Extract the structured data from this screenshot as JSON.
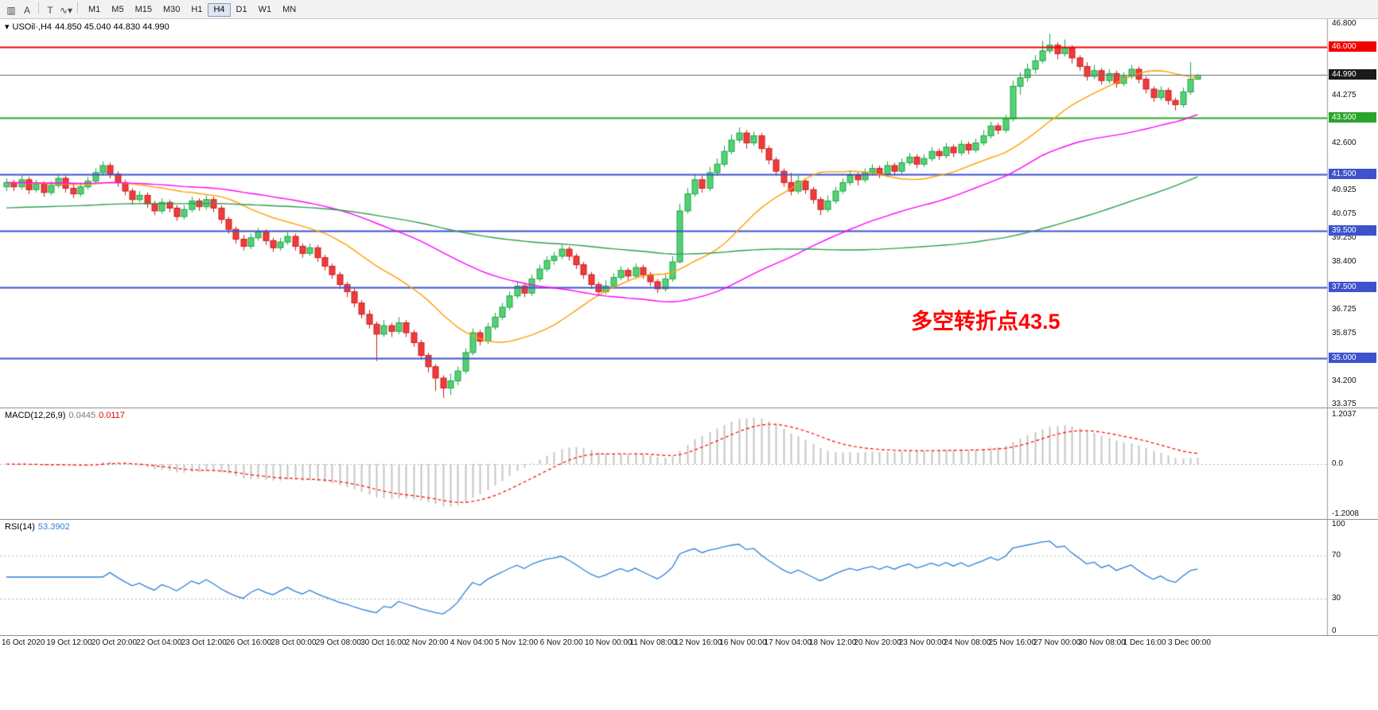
{
  "toolbar": {
    "icons": [
      {
        "name": "charts-grid-icon",
        "glyph": "▥"
      },
      {
        "name": "cursor-tool-icon",
        "glyph": "A"
      },
      {
        "name": "separator",
        "glyph": ""
      },
      {
        "name": "text-tool-icon",
        "glyph": "T"
      },
      {
        "name": "line-tools-icon",
        "glyph": "∿▾"
      },
      {
        "name": "separator",
        "glyph": ""
      }
    ],
    "timeframes": [
      "M1",
      "M5",
      "M15",
      "M30",
      "H1",
      "H4",
      "D1",
      "W1",
      "MN"
    ],
    "active_timeframe": "H4"
  },
  "price_panel": {
    "collapse_arrow": "▾",
    "symbol_title": "USOil·,H4",
    "ohlc": "44.850 45.040 44.830 44.990",
    "annotation": {
      "text": "多空转折点43.5",
      "color": "#FF0000"
    },
    "axis_ticks": [
      {
        "v": 46.8,
        "label": "46.800"
      },
      {
        "v": 44.275,
        "label": "44.275"
      },
      {
        "v": 42.6,
        "label": "42.600"
      },
      {
        "v": 40.925,
        "label": "40.925"
      },
      {
        "v": 40.075,
        "label": "40.075"
      },
      {
        "v": 39.25,
        "label": "39.250"
      },
      {
        "v": 38.4,
        "label": "38.400"
      },
      {
        "v": 36.725,
        "label": "36.725"
      },
      {
        "v": 35.875,
        "label": "35.875"
      },
      {
        "v": 34.2,
        "label": "34.200"
      },
      {
        "v": 33.375,
        "label": "33.375"
      }
    ],
    "hlines": [
      {
        "value": 46.0,
        "label": "46.000",
        "color": "#f20000",
        "width": 2
      },
      {
        "value": 43.5,
        "label": "43.500",
        "color": "#2aa52a",
        "width": 2
      },
      {
        "value": 41.5,
        "label": "41.500",
        "color": "#3d52cc",
        "width": 2
      },
      {
        "value": 39.5,
        "label": "39.500",
        "color": "#3d52cc",
        "width": 2
      },
      {
        "value": 37.5,
        "label": "37.500",
        "color": "#3d52cc",
        "width": 2
      },
      {
        "value": 35.0,
        "label": "35.000",
        "color": "#3d52cc",
        "width": 2
      }
    ],
    "current_price": {
      "value": 44.99,
      "label": "44.990",
      "badge_color": "#1a1a1a",
      "line_color": "#6a6a6a"
    }
  },
  "macd_panel": {
    "title": "MACD(12,26,9)",
    "main_value": "0.0445",
    "signal_value": "0.0117",
    "axis_labels": [
      "1.2037",
      "0.0",
      "-1.2008"
    ]
  },
  "rsi_panel": {
    "title": "RSI(14)",
    "value": "53.3902",
    "levels": [
      70,
      30
    ],
    "axis_labels": [
      {
        "v": 100,
        "label": "100"
      },
      {
        "v": 70,
        "label": "70"
      },
      {
        "v": 30,
        "label": "30"
      },
      {
        "v": 0,
        "label": "0"
      }
    ]
  },
  "time_axis": {
    "labels": [
      "16 Oct 2020",
      "19 Oct 12:00",
      "20 Oct 20:00",
      "22 Oct 04:00",
      "23 Oct 12:00",
      "26 Oct 16:00",
      "28 Oct 00:00",
      "29 Oct 08:00",
      "30 Oct 16:00",
      "2 Nov 20:00",
      "4 Nov 04:00",
      "5 Nov 12:00",
      "6 Nov 20:00",
      "10 Nov 00:00",
      "11 Nov 08:00",
      "12 Nov 16:00",
      "16 Nov 00:00",
      "17 Nov 04:00",
      "18 Nov 12:00",
      "20 Nov 20:00",
      "23 Nov 00:00",
      "24 Nov 08:00",
      "25 Nov 16:00",
      "27 Nov 00:00",
      "30 Nov 08:00",
      "1 Dec 16:00",
      "3 Dec 00:00"
    ]
  },
  "chart_data": {
    "type": "candlestick",
    "symbol": "USOil",
    "timeframe": "H4",
    "title": "USOil·,H4 44.850 45.040 44.830 44.990",
    "y_domain": [
      33.26,
      46.97
    ],
    "x_range": [
      "16 Oct 2020",
      "3 Dec 2020 00:00"
    ],
    "grid": false,
    "candles": [
      [
        41.05,
        41.35,
        40.9,
        41.2
      ],
      [
        41.2,
        41.3,
        40.9,
        41.05
      ],
      [
        41.05,
        41.45,
        40.95,
        41.3
      ],
      [
        41.3,
        41.4,
        40.8,
        40.95
      ],
      [
        40.95,
        41.3,
        40.85,
        41.15
      ],
      [
        41.15,
        41.25,
        40.7,
        40.85
      ],
      [
        40.85,
        41.25,
        40.75,
        41.1
      ],
      [
        41.1,
        41.5,
        41.0,
        41.35
      ],
      [
        41.35,
        41.45,
        40.85,
        41.0
      ],
      [
        41.0,
        41.15,
        40.65,
        40.8
      ],
      [
        40.8,
        41.2,
        40.7,
        41.05
      ],
      [
        41.05,
        41.4,
        40.95,
        41.25
      ],
      [
        41.25,
        41.7,
        41.15,
        41.55
      ],
      [
        41.55,
        41.95,
        41.45,
        41.8
      ],
      [
        41.8,
        41.9,
        41.35,
        41.5
      ],
      [
        41.5,
        41.6,
        41.05,
        41.2
      ],
      [
        41.2,
        41.3,
        40.75,
        40.9
      ],
      [
        40.9,
        41.0,
        40.45,
        40.6
      ],
      [
        40.6,
        40.9,
        40.5,
        40.75
      ],
      [
        40.75,
        40.85,
        40.3,
        40.45
      ],
      [
        40.45,
        40.55,
        40.05,
        40.2
      ],
      [
        40.2,
        40.65,
        40.1,
        40.5
      ],
      [
        40.5,
        40.6,
        40.15,
        40.3
      ],
      [
        40.3,
        40.4,
        39.85,
        40.0
      ],
      [
        40.0,
        40.4,
        39.9,
        40.25
      ],
      [
        40.25,
        40.7,
        40.15,
        40.55
      ],
      [
        40.55,
        40.65,
        40.2,
        40.35
      ],
      [
        40.35,
        40.75,
        40.25,
        40.6
      ],
      [
        40.6,
        40.7,
        40.15,
        40.3
      ],
      [
        40.3,
        40.4,
        39.75,
        39.9
      ],
      [
        39.9,
        40.0,
        39.4,
        39.55
      ],
      [
        39.55,
        39.65,
        39.05,
        39.2
      ],
      [
        39.2,
        39.35,
        38.8,
        38.95
      ],
      [
        38.95,
        39.4,
        38.85,
        39.25
      ],
      [
        39.25,
        39.6,
        39.15,
        39.45
      ],
      [
        39.45,
        39.55,
        39.0,
        39.15
      ],
      [
        39.15,
        39.25,
        38.75,
        38.9
      ],
      [
        38.9,
        39.25,
        38.8,
        39.1
      ],
      [
        39.1,
        39.45,
        39.0,
        39.3
      ],
      [
        39.3,
        39.4,
        38.8,
        38.95
      ],
      [
        38.95,
        39.05,
        38.55,
        38.7
      ],
      [
        38.7,
        39.05,
        38.6,
        38.9
      ],
      [
        38.9,
        39.0,
        38.4,
        38.55
      ],
      [
        38.55,
        38.65,
        38.1,
        38.25
      ],
      [
        38.25,
        38.35,
        37.8,
        37.95
      ],
      [
        37.95,
        38.05,
        37.45,
        37.6
      ],
      [
        37.6,
        37.7,
        37.15,
        37.35
      ],
      [
        37.35,
        37.5,
        36.8,
        36.95
      ],
      [
        36.95,
        37.05,
        36.4,
        36.55
      ],
      [
        36.55,
        36.7,
        36.05,
        36.2
      ],
      [
        36.2,
        36.3,
        34.9,
        35.85
      ],
      [
        35.85,
        36.35,
        35.75,
        36.15
      ],
      [
        36.15,
        36.25,
        35.75,
        35.95
      ],
      [
        35.95,
        36.45,
        35.85,
        36.25
      ],
      [
        36.25,
        36.35,
        35.75,
        35.9
      ],
      [
        35.9,
        36.0,
        35.4,
        35.55
      ],
      [
        35.55,
        35.65,
        34.95,
        35.1
      ],
      [
        35.1,
        35.2,
        34.5,
        34.7
      ],
      [
        34.7,
        34.8,
        33.85,
        34.3
      ],
      [
        34.3,
        34.4,
        33.6,
        33.95
      ],
      [
        33.95,
        34.45,
        33.7,
        34.2
      ],
      [
        34.2,
        34.7,
        34.05,
        34.55
      ],
      [
        34.55,
        35.35,
        34.45,
        35.2
      ],
      [
        35.2,
        36.05,
        35.1,
        35.9
      ],
      [
        35.9,
        36.0,
        35.45,
        35.6
      ],
      [
        35.6,
        36.25,
        35.5,
        36.1
      ],
      [
        36.1,
        36.6,
        36.0,
        36.45
      ],
      [
        36.45,
        36.95,
        36.35,
        36.8
      ],
      [
        36.8,
        37.35,
        36.7,
        37.2
      ],
      [
        37.2,
        37.7,
        37.1,
        37.55
      ],
      [
        37.55,
        37.65,
        37.15,
        37.3
      ],
      [
        37.3,
        37.95,
        37.2,
        37.8
      ],
      [
        37.8,
        38.3,
        37.7,
        38.15
      ],
      [
        38.15,
        38.6,
        38.05,
        38.45
      ],
      [
        38.45,
        38.75,
        38.3,
        38.6
      ],
      [
        38.6,
        39.0,
        38.5,
        38.85
      ],
      [
        38.85,
        38.95,
        38.45,
        38.6
      ],
      [
        38.6,
        38.7,
        38.15,
        38.3
      ],
      [
        38.3,
        38.4,
        37.8,
        37.95
      ],
      [
        37.95,
        38.05,
        37.45,
        37.6
      ],
      [
        37.6,
        37.7,
        37.2,
        37.35
      ],
      [
        37.35,
        37.75,
        37.25,
        37.55
      ],
      [
        37.55,
        38.0,
        37.45,
        37.85
      ],
      [
        37.85,
        38.25,
        37.75,
        38.1
      ],
      [
        38.1,
        38.2,
        37.75,
        37.9
      ],
      [
        37.9,
        38.35,
        37.8,
        38.2
      ],
      [
        38.2,
        38.3,
        37.8,
        37.95
      ],
      [
        37.95,
        38.05,
        37.55,
        37.7
      ],
      [
        37.7,
        37.8,
        37.3,
        37.45
      ],
      [
        37.45,
        37.95,
        37.35,
        37.8
      ],
      [
        37.8,
        38.6,
        37.7,
        38.4
      ],
      [
        38.4,
        40.45,
        38.35,
        40.2
      ],
      [
        40.2,
        41.0,
        40.1,
        40.8
      ],
      [
        40.8,
        41.5,
        40.7,
        41.3
      ],
      [
        41.3,
        41.45,
        40.85,
        41.0
      ],
      [
        41.0,
        41.75,
        40.9,
        41.55
      ],
      [
        41.55,
        42.05,
        41.45,
        41.85
      ],
      [
        41.85,
        42.5,
        41.75,
        42.3
      ],
      [
        42.3,
        42.9,
        42.2,
        42.7
      ],
      [
        42.7,
        43.15,
        42.6,
        42.95
      ],
      [
        42.95,
        43.05,
        42.4,
        42.6
      ],
      [
        42.6,
        43.0,
        42.5,
        42.85
      ],
      [
        42.85,
        42.95,
        42.25,
        42.4
      ],
      [
        42.4,
        42.5,
        41.85,
        42.0
      ],
      [
        42.0,
        42.1,
        41.45,
        41.6
      ],
      [
        41.6,
        41.7,
        41.05,
        41.2
      ],
      [
        41.2,
        41.55,
        40.75,
        40.9
      ],
      [
        40.9,
        41.45,
        40.8,
        41.25
      ],
      [
        41.25,
        41.35,
        40.8,
        40.95
      ],
      [
        40.95,
        41.05,
        40.45,
        40.6
      ],
      [
        40.6,
        40.7,
        40.05,
        40.25
      ],
      [
        40.25,
        40.75,
        40.15,
        40.55
      ],
      [
        40.55,
        41.05,
        40.45,
        40.9
      ],
      [
        40.9,
        41.35,
        40.8,
        41.2
      ],
      [
        41.2,
        41.6,
        41.1,
        41.45
      ],
      [
        41.45,
        41.55,
        41.1,
        41.3
      ],
      [
        41.3,
        41.7,
        41.2,
        41.55
      ],
      [
        41.55,
        41.85,
        41.45,
        41.7
      ],
      [
        41.7,
        41.8,
        41.35,
        41.5
      ],
      [
        41.5,
        41.95,
        41.4,
        41.8
      ],
      [
        41.8,
        41.9,
        41.45,
        41.6
      ],
      [
        41.6,
        42.05,
        41.5,
        41.9
      ],
      [
        41.9,
        42.25,
        41.8,
        42.1
      ],
      [
        42.1,
        42.2,
        41.7,
        41.85
      ],
      [
        41.85,
        42.2,
        41.75,
        42.05
      ],
      [
        42.05,
        42.45,
        41.95,
        42.3
      ],
      [
        42.3,
        42.4,
        42.0,
        42.15
      ],
      [
        42.15,
        42.6,
        42.05,
        42.45
      ],
      [
        42.45,
        42.55,
        42.1,
        42.25
      ],
      [
        42.25,
        42.7,
        42.15,
        42.55
      ],
      [
        42.55,
        42.65,
        42.2,
        42.35
      ],
      [
        42.35,
        42.75,
        42.25,
        42.6
      ],
      [
        42.6,
        43.05,
        42.5,
        42.85
      ],
      [
        42.85,
        43.35,
        42.75,
        43.2
      ],
      [
        43.2,
        43.3,
        42.9,
        43.05
      ],
      [
        43.05,
        43.6,
        42.95,
        43.45
      ],
      [
        43.45,
        44.8,
        43.35,
        44.6
      ],
      [
        44.6,
        45.1,
        44.3,
        44.9
      ],
      [
        44.9,
        45.4,
        44.75,
        45.2
      ],
      [
        45.2,
        45.7,
        45.05,
        45.5
      ],
      [
        45.5,
        46.2,
        45.4,
        45.85
      ],
      [
        45.85,
        46.45,
        45.75,
        46.05
      ],
      [
        46.05,
        46.15,
        45.55,
        45.75
      ],
      [
        45.75,
        46.25,
        45.65,
        45.95
      ],
      [
        45.95,
        46.05,
        45.4,
        45.6
      ],
      [
        45.6,
        45.7,
        45.15,
        45.3
      ],
      [
        45.3,
        45.45,
        44.8,
        44.95
      ],
      [
        44.95,
        45.35,
        44.85,
        45.15
      ],
      [
        45.15,
        45.25,
        44.65,
        44.8
      ],
      [
        44.8,
        45.2,
        44.7,
        45.05
      ],
      [
        45.05,
        45.15,
        44.55,
        44.7
      ],
      [
        44.7,
        45.1,
        44.6,
        44.95
      ],
      [
        44.95,
        45.35,
        44.85,
        45.2
      ],
      [
        45.2,
        45.3,
        44.7,
        44.85
      ],
      [
        44.85,
        44.95,
        44.35,
        44.5
      ],
      [
        44.5,
        44.6,
        44.05,
        44.2
      ],
      [
        44.2,
        44.6,
        44.1,
        44.45
      ],
      [
        44.45,
        44.55,
        43.95,
        44.1
      ],
      [
        44.1,
        44.2,
        43.75,
        43.95
      ],
      [
        43.95,
        44.55,
        43.85,
        44.4
      ],
      [
        44.4,
        45.45,
        44.3,
        44.85
      ],
      [
        44.85,
        45.04,
        44.83,
        44.99
      ]
    ],
    "moving_averages": [
      {
        "name": "MA20",
        "period": 20,
        "color": "#ff9c00"
      },
      {
        "name": "MA50",
        "period": 50,
        "color": "#ff00ff"
      },
      {
        "name": "MA100",
        "period": 100,
        "color": "#2e9e4f",
        "pad": 40.3
      }
    ],
    "indicators": {
      "macd": {
        "fast": 12,
        "slow": 26,
        "signal": 9,
        "main_value": 0.0445,
        "signal_value": 0.0117,
        "axis_max": 1.2037,
        "axis_min": -1.2008
      },
      "rsi": {
        "period": 14,
        "value": 53.3902,
        "levels": [
          70,
          30
        ],
        "range": [
          0,
          100
        ]
      }
    },
    "colors": {
      "bull": "#1fa34a",
      "bull_fill": "#53d273",
      "bear": "#c81e1e",
      "bear_fill": "#f03b3b",
      "macd_hist": "#c4c4c4",
      "macd_signal": "#ff0000",
      "rsi_line": "#2f7fd6",
      "level_dotted": "#b5b5b5",
      "axis_border": "#9a9a9a"
    }
  }
}
